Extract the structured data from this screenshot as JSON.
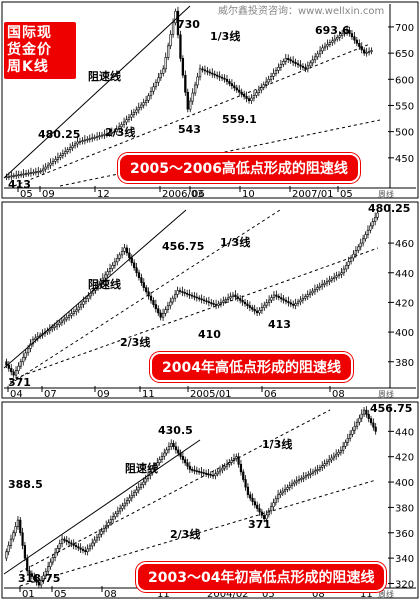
{
  "header": {
    "watermark": "威尔鑫投资咨询：www.wellxin.com",
    "title_lines": [
      "国际现",
      "货金价",
      "周K线"
    ]
  },
  "colors": {
    "banner": "#e00000",
    "candle_up": "#ffffff",
    "candle_down": "#000000",
    "line": "#000000"
  },
  "chart_data": [
    {
      "type": "candlestick",
      "caption": "2005～2006高低点形成的阻速线",
      "unit_label": "周线",
      "y_ticks": [
        450,
        500,
        550,
        600,
        650,
        700
      ],
      "ylim": [
        400,
        740
      ],
      "x_tick_labels": [
        "05",
        "09",
        "12",
        "2006/03",
        "06",
        "10",
        "2007/01",
        "05"
      ],
      "key_points": [
        {
          "label": "413",
          "value": 413
        },
        {
          "label": "480.25",
          "value": 480.25
        },
        {
          "label": "730",
          "value": 730
        },
        {
          "label": "543",
          "value": 543
        },
        {
          "label": "559.1",
          "value": 559.1
        },
        {
          "label": "693.6",
          "value": 693.6
        }
      ],
      "line_labels": [
        "阻速线",
        "1/3线",
        "2/3线"
      ],
      "anchors": [
        [
          0,
          413
        ],
        [
          15,
          425
        ],
        [
          30,
          480.25
        ],
        [
          45,
          500
        ],
        [
          58,
          560
        ],
        [
          65,
          620
        ],
        [
          70,
          730
        ],
        [
          72,
          640
        ],
        [
          75,
          543
        ],
        [
          80,
          620
        ],
        [
          90,
          600
        ],
        [
          100,
          559.1
        ],
        [
          108,
          600
        ],
        [
          115,
          640
        ],
        [
          123,
          620
        ],
        [
          130,
          660
        ],
        [
          140,
          693.6
        ],
        [
          147,
          650
        ],
        [
          150,
          655
        ]
      ]
    },
    {
      "type": "candlestick",
      "caption": "2004年高低点形成的阻速线",
      "unit_label": "周线",
      "y_ticks": [
        380,
        400,
        420,
        440,
        460
      ],
      "ylim": [
        365,
        485
      ],
      "x_tick_labels": [
        "04",
        "07",
        "09",
        "11",
        "2005/01",
        "06",
        "08"
      ],
      "key_points": [
        {
          "label": "371",
          "value": 371
        },
        {
          "label": "456.75",
          "value": 456.75
        },
        {
          "label": "410",
          "value": 410
        },
        {
          "label": "413",
          "value": 413
        },
        {
          "label": "480.25",
          "value": 480.25
        }
      ],
      "line_labels": [
        "阻速线",
        "1/3线",
        "2/3线"
      ],
      "anchors": [
        [
          0,
          380
        ],
        [
          4,
          371
        ],
        [
          12,
          395
        ],
        [
          22,
          405
        ],
        [
          30,
          415
        ],
        [
          38,
          430
        ],
        [
          45,
          445
        ],
        [
          50,
          456.75
        ],
        [
          58,
          430
        ],
        [
          65,
          410
        ],
        [
          72,
          428
        ],
        [
          80,
          423
        ],
        [
          88,
          418
        ],
        [
          95,
          425
        ],
        [
          105,
          413
        ],
        [
          112,
          425
        ],
        [
          120,
          418
        ],
        [
          130,
          430
        ],
        [
          140,
          440
        ],
        [
          148,
          460
        ],
        [
          155,
          480.25
        ]
      ]
    },
    {
      "type": "candlestick",
      "caption": "2003～04年初高低点形成的阻速线",
      "unit_label": "周线",
      "y_ticks": [
        320,
        340,
        360,
        380,
        400,
        420,
        440
      ],
      "ylim": [
        318,
        460
      ],
      "x_tick_labels": [
        "01",
        "05",
        "08",
        "11",
        "2004/02",
        "05",
        "08",
        "11"
      ],
      "key_points": [
        {
          "label": "388.5",
          "value": 388.5
        },
        {
          "label": "318.75",
          "value": 318.75
        },
        {
          "label": "430.5",
          "value": 430.5
        },
        {
          "label": "371",
          "value": 371
        },
        {
          "label": "456.75",
          "value": 456.75
        }
      ],
      "line_labels": [
        "阻速线",
        "1/3线",
        "2/3线"
      ],
      "anchors": [
        [
          0,
          340
        ],
        [
          6,
          370
        ],
        [
          10,
          330
        ],
        [
          15,
          318.75
        ],
        [
          25,
          355
        ],
        [
          35,
          345
        ],
        [
          48,
          375
        ],
        [
          60,
          400
        ],
        [
          72,
          430.5
        ],
        [
          80,
          410
        ],
        [
          90,
          405
        ],
        [
          100,
          420
        ],
        [
          105,
          390
        ],
        [
          112,
          371
        ],
        [
          118,
          390
        ],
        [
          125,
          400
        ],
        [
          135,
          410
        ],
        [
          145,
          425
        ],
        [
          155,
          456.75
        ],
        [
          160,
          440
        ]
      ]
    }
  ]
}
